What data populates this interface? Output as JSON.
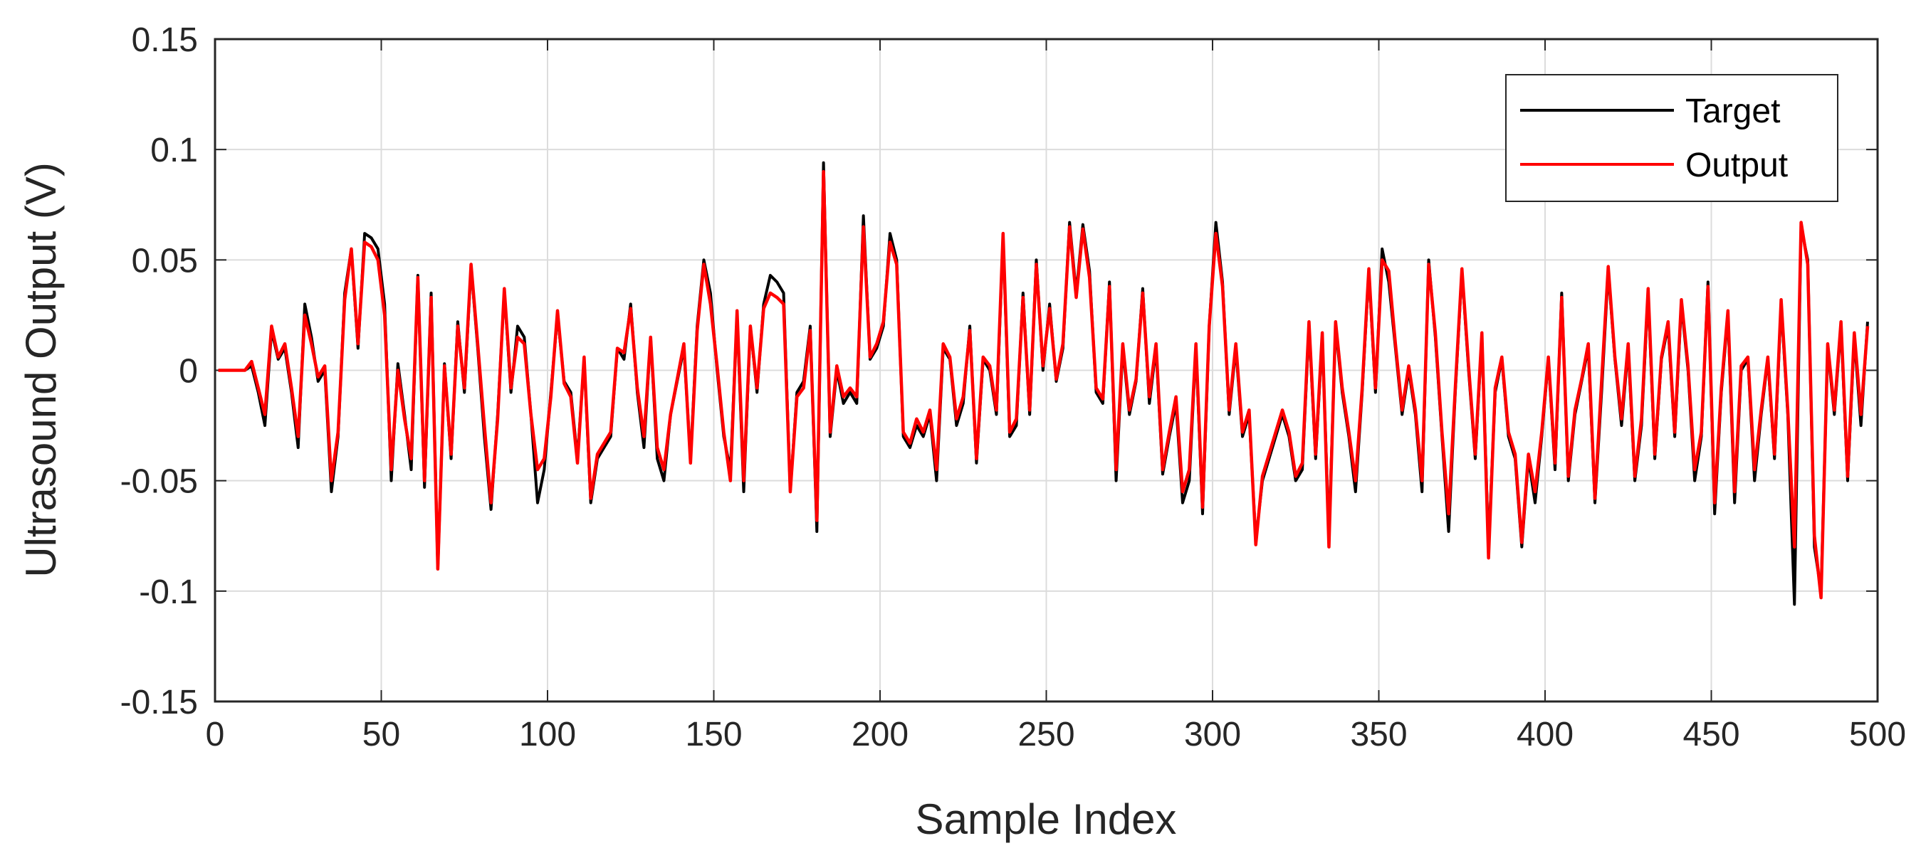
{
  "chart_data": {
    "type": "line",
    "xlabel": "Sample Index",
    "ylabel": "Ultrasound Output (V)",
    "xlim": [
      0,
      500
    ],
    "ylim": [
      -0.15,
      0.15
    ],
    "xticks": [
      0,
      50,
      100,
      150,
      200,
      250,
      300,
      350,
      400,
      450,
      500
    ],
    "yticks": [
      -0.15,
      -0.1,
      -0.05,
      0,
      0.05,
      0.1,
      0.15
    ],
    "grid": true,
    "legend": "upper right",
    "x": [
      1,
      3,
      5,
      7,
      9,
      11,
      13,
      15,
      17,
      19,
      21,
      23,
      25,
      27,
      29,
      31,
      33,
      35,
      37,
      39,
      41,
      43,
      45,
      47,
      49,
      51,
      53,
      55,
      57,
      59,
      61,
      63,
      65,
      67,
      69,
      71,
      73,
      75,
      77,
      79,
      81,
      83,
      85,
      87,
      89,
      91,
      93,
      95,
      97,
      99,
      101,
      103,
      105,
      107,
      109,
      111,
      113,
      115,
      117,
      119,
      121,
      123,
      125,
      127,
      129,
      131,
      133,
      135,
      137,
      139,
      141,
      143,
      145,
      147,
      149,
      151,
      153,
      155,
      157,
      159,
      161,
      163,
      165,
      167,
      169,
      171,
      173,
      175,
      177,
      179,
      181,
      183,
      185,
      187,
      189,
      191,
      193,
      195,
      197,
      199,
      201,
      203,
      205,
      207,
      209,
      211,
      213,
      215,
      217,
      219,
      221,
      223,
      225,
      227,
      229,
      231,
      233,
      235,
      237,
      239,
      241,
      243,
      245,
      247,
      249,
      251,
      253,
      255,
      257,
      259,
      261,
      263,
      265,
      267,
      269,
      271,
      273,
      275,
      277,
      279,
      281,
      283,
      285,
      287,
      289,
      291,
      293,
      295,
      297,
      299,
      301,
      303,
      305,
      307,
      309,
      311,
      313,
      315,
      317,
      319,
      321,
      323,
      325,
      327,
      329,
      331,
      333,
      335,
      337,
      339,
      341,
      343,
      345,
      347,
      349,
      351,
      353,
      355,
      357,
      359,
      361,
      363,
      365,
      367,
      369,
      371,
      373,
      375,
      377,
      379,
      381,
      383,
      385,
      387,
      389,
      391,
      393,
      395,
      397,
      399,
      401,
      403,
      405,
      407,
      409,
      411,
      413,
      415,
      417,
      419,
      421,
      423,
      425,
      427,
      429,
      431,
      433,
      435,
      437,
      439,
      441,
      443,
      445,
      447,
      449,
      451,
      453,
      455,
      457,
      459,
      461,
      463,
      465,
      467,
      469,
      471,
      473,
      475,
      477,
      479,
      481,
      483,
      485,
      487,
      489,
      491,
      493,
      495,
      497
    ],
    "series": [
      {
        "name": "Target",
        "color": "#000000",
        "values": [
          0,
          0,
          0,
          0,
          0,
          0.002,
          -0.01,
          -0.025,
          0.018,
          0.005,
          0.01,
          -0.01,
          -0.035,
          0.03,
          0.015,
          -0.005,
          0,
          -0.055,
          -0.03,
          0.035,
          0.055,
          0.01,
          0.062,
          0.06,
          0.055,
          0.03,
          -0.05,
          0.003,
          -0.02,
          -0.045,
          0.043,
          -0.053,
          0.035,
          -0.09,
          0.003,
          -0.04,
          0.022,
          -0.01,
          0.047,
          0.01,
          -0.03,
          -0.063,
          -0.02,
          0.036,
          -0.01,
          0.02,
          0.015,
          -0.02,
          -0.06,
          -0.045,
          -0.01,
          0.025,
          -0.005,
          -0.01,
          -0.04,
          0.005,
          -0.06,
          -0.04,
          -0.035,
          -0.03,
          0.01,
          0.005,
          0.03,
          -0.01,
          -0.035,
          0.015,
          -0.04,
          -0.05,
          -0.02,
          -0.005,
          0.01,
          -0.04,
          0.02,
          0.05,
          0.035,
          0,
          -0.03,
          -0.045,
          0.025,
          -0.055,
          0.02,
          -0.01,
          0.03,
          0.043,
          0.04,
          0.035,
          -0.055,
          -0.01,
          -0.005,
          0.02,
          -0.073,
          0.094,
          -0.03,
          0,
          -0.015,
          -0.01,
          -0.015,
          0.07,
          0.005,
          0.01,
          0.02,
          0.062,
          0.05,
          -0.03,
          -0.035,
          -0.025,
          -0.03,
          -0.02,
          -0.05,
          0.01,
          0.005,
          -0.025,
          -0.015,
          0.02,
          -0.042,
          0.005,
          0,
          -0.02,
          0.06,
          -0.03,
          -0.025,
          0.035,
          -0.02,
          0.05,
          0,
          0.03,
          -0.005,
          0.01,
          0.067,
          0.035,
          0.066,
          0.045,
          -0.01,
          -0.015,
          0.04,
          -0.05,
          0.01,
          -0.02,
          -0.005,
          0.037,
          -0.015,
          0.01,
          -0.047,
          -0.03,
          -0.015,
          -0.06,
          -0.05,
          0.01,
          -0.065,
          0.02,
          0.067,
          0.04,
          -0.02,
          0.01,
          -0.03,
          -0.02,
          -0.077,
          -0.05,
          -0.04,
          -0.03,
          -0.02,
          -0.03,
          -0.05,
          -0.045,
          0.02,
          -0.04,
          0.015,
          -0.075,
          0.02,
          -0.01,
          -0.03,
          -0.055,
          -0.01,
          0.045,
          -0.01,
          0.055,
          0.04,
          0.01,
          -0.02,
          0,
          -0.02,
          -0.055,
          0.05,
          0.015,
          -0.03,
          -0.073,
          -0.01,
          0.045,
          0,
          -0.04,
          0.015,
          -0.08,
          -0.01,
          0.005,
          -0.03,
          -0.04,
          -0.08,
          -0.04,
          -0.06,
          -0.03,
          0.005,
          -0.045,
          0.035,
          -0.05,
          -0.02,
          -0.005,
          0.01,
          -0.06,
          -0.01,
          0.045,
          0.005,
          -0.025,
          0.01,
          -0.05,
          -0.025,
          0.035,
          -0.04,
          0.005,
          0.02,
          -0.03,
          0.03,
          0,
          -0.05,
          -0.03,
          0.04,
          -0.065,
          -0.01,
          0.025,
          -0.06,
          0,
          0.005,
          -0.05,
          -0.02,
          0.005,
          -0.04,
          0.03,
          -0.02,
          -0.106,
          0.065,
          0.05,
          -0.08,
          -0.1,
          0.01,
          -0.02,
          0.02,
          -0.05,
          0.015,
          -0.025,
          0.022
        ]
      },
      {
        "name": "Output",
        "color": "#ff0000",
        "values": [
          0,
          0,
          0,
          0,
          0,
          0.004,
          -0.008,
          -0.02,
          0.02,
          0.006,
          0.012,
          -0.008,
          -0.03,
          0.025,
          0.012,
          -0.003,
          0.002,
          -0.05,
          -0.028,
          0.032,
          0.055,
          0.012,
          0.058,
          0.056,
          0.05,
          0.025,
          -0.045,
          0,
          -0.022,
          -0.04,
          0.042,
          -0.05,
          0.033,
          -0.09,
          0.002,
          -0.038,
          0.02,
          -0.008,
          0.048,
          0.012,
          -0.025,
          -0.06,
          -0.022,
          0.037,
          -0.008,
          0.015,
          0.012,
          -0.02,
          -0.045,
          -0.04,
          -0.012,
          0.027,
          -0.006,
          -0.012,
          -0.042,
          0.006,
          -0.058,
          -0.038,
          -0.033,
          -0.028,
          0.01,
          0.008,
          0.028,
          -0.008,
          -0.03,
          0.015,
          -0.035,
          -0.045,
          -0.02,
          -0.004,
          0.012,
          -0.042,
          0.018,
          0.048,
          0.03,
          0.002,
          -0.028,
          -0.05,
          0.027,
          -0.05,
          0.02,
          -0.008,
          0.028,
          0.035,
          0.033,
          0.03,
          -0.055,
          -0.012,
          -0.008,
          0.018,
          -0.068,
          0.09,
          -0.028,
          0.002,
          -0.012,
          -0.008,
          -0.012,
          0.065,
          0.006,
          0.012,
          0.022,
          0.058,
          0.048,
          -0.028,
          -0.033,
          -0.022,
          -0.028,
          -0.018,
          -0.045,
          0.012,
          0.006,
          -0.022,
          -0.012,
          0.018,
          -0.04,
          0.006,
          0.002,
          -0.018,
          0.062,
          -0.028,
          -0.022,
          0.033,
          -0.018,
          0.048,
          0.002,
          0.028,
          -0.004,
          0.012,
          0.065,
          0.033,
          0.064,
          0.042,
          -0.008,
          -0.013,
          0.038,
          -0.045,
          0.012,
          -0.018,
          -0.004,
          0.035,
          -0.012,
          0.012,
          -0.045,
          -0.028,
          -0.012,
          -0.055,
          -0.045,
          0.012,
          -0.062,
          0.02,
          0.062,
          0.038,
          -0.018,
          0.012,
          -0.028,
          -0.018,
          -0.079,
          -0.048,
          -0.038,
          -0.028,
          -0.018,
          -0.028,
          -0.048,
          -0.042,
          0.022,
          -0.038,
          0.017,
          -0.08,
          0.022,
          -0.008,
          -0.028,
          -0.05,
          -0.008,
          0.046,
          -0.008,
          0.05,
          0.045,
          0.012,
          -0.018,
          0.002,
          -0.018,
          -0.05,
          0.048,
          0.017,
          -0.028,
          -0.065,
          -0.008,
          0.046,
          0.002,
          -0.038,
          0.017,
          -0.085,
          -0.008,
          0.006,
          -0.028,
          -0.038,
          -0.078,
          -0.038,
          -0.055,
          -0.028,
          0.006,
          -0.042,
          0.033,
          -0.048,
          -0.018,
          -0.004,
          0.012,
          -0.058,
          -0.005,
          0.047,
          0.006,
          -0.022,
          0.012,
          -0.048,
          -0.022,
          0.037,
          -0.038,
          0.006,
          0.022,
          -0.028,
          0.032,
          0.002,
          -0.045,
          -0.028,
          0.038,
          -0.06,
          -0.008,
          0.027,
          -0.055,
          0.002,
          0.006,
          -0.045,
          -0.018,
          0.006,
          -0.038,
          0.032,
          -0.018,
          -0.08,
          0.067,
          0.048,
          -0.075,
          -0.103,
          0.012,
          -0.018,
          0.022,
          -0.048,
          0.017,
          -0.02,
          0.02
        ]
      }
    ]
  }
}
